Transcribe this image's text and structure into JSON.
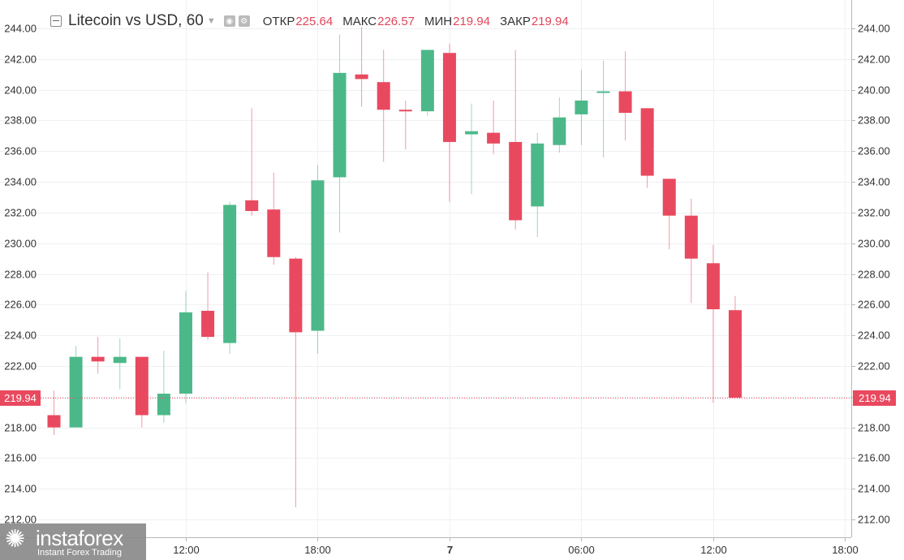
{
  "header": {
    "title": "Litecoin vs USD, 60",
    "open_label": "ОТКР",
    "open_value": "225.64",
    "high_label": "МАКС",
    "high_value": "226.57",
    "low_label": "МИН",
    "low_value": "219.94",
    "close_label": "ЗАКР",
    "close_value": "219.94"
  },
  "logo": {
    "name": "instaforex",
    "tagline": "Instant Forex Trading"
  },
  "colors": {
    "up": "#4cb88a",
    "down": "#e9495f",
    "grid": "#eef0f3",
    "axis": "#b8b8b8",
    "price_line": "#e9495f"
  },
  "chart_data": {
    "type": "candlestick",
    "ylim": [
      211,
      245
    ],
    "y_ticks": [
      244,
      242,
      240,
      238,
      236,
      234,
      232,
      230,
      228,
      226,
      224,
      222,
      220,
      218,
      216,
      214,
      212
    ],
    "x_ticks": [
      {
        "label": "12:00",
        "bar": 6
      },
      {
        "label": "18:00",
        "bar": 12
      },
      {
        "label": "7",
        "bar": 18
      },
      {
        "label": "06:00",
        "bar": 24
      },
      {
        "label": "12:00",
        "bar": 30
      },
      {
        "label": "18:00",
        "bar": 36
      }
    ],
    "last_price": "219.94",
    "candles": [
      {
        "o": 218.8,
        "h": 220.4,
        "l": 217.5,
        "c": 218.0
      },
      {
        "o": 218.0,
        "h": 223.3,
        "l": 218.0,
        "c": 222.6
      },
      {
        "o": 222.6,
        "h": 223.9,
        "l": 221.5,
        "c": 222.3
      },
      {
        "o": 222.2,
        "h": 223.8,
        "l": 220.5,
        "c": 222.6
      },
      {
        "o": 222.6,
        "h": 222.6,
        "l": 218.0,
        "c": 218.8
      },
      {
        "o": 218.8,
        "h": 223.0,
        "l": 218.3,
        "c": 220.2
      },
      {
        "o": 220.2,
        "h": 226.9,
        "l": 219.6,
        "c": 225.5
      },
      {
        "o": 225.6,
        "h": 228.1,
        "l": 223.7,
        "c": 223.9
      },
      {
        "o": 223.5,
        "h": 232.7,
        "l": 222.8,
        "c": 232.5
      },
      {
        "o": 232.8,
        "h": 238.8,
        "l": 231.8,
        "c": 232.1
      },
      {
        "o": 232.2,
        "h": 234.6,
        "l": 228.6,
        "c": 229.1
      },
      {
        "o": 229.0,
        "h": 229.1,
        "l": 212.8,
        "c": 224.2
      },
      {
        "o": 224.3,
        "h": 235.1,
        "l": 222.8,
        "c": 234.1
      },
      {
        "o": 234.3,
        "h": 243.6,
        "l": 230.7,
        "c": 241.1
      },
      {
        "o": 241.0,
        "h": 244.1,
        "l": 238.9,
        "c": 240.7
      },
      {
        "o": 240.5,
        "h": 242.6,
        "l": 235.3,
        "c": 238.7
      },
      {
        "o": 238.7,
        "h": 239.3,
        "l": 236.1,
        "c": 238.6
      },
      {
        "o": 238.6,
        "h": 242.6,
        "l": 238.3,
        "c": 242.6
      },
      {
        "o": 242.4,
        "h": 243.0,
        "l": 232.7,
        "c": 236.6
      },
      {
        "o": 237.1,
        "h": 239.1,
        "l": 233.2,
        "c": 237.3
      },
      {
        "o": 237.2,
        "h": 239.3,
        "l": 235.8,
        "c": 236.5
      },
      {
        "o": 236.6,
        "h": 242.6,
        "l": 230.9,
        "c": 231.5
      },
      {
        "o": 232.4,
        "h": 237.2,
        "l": 230.4,
        "c": 236.5
      },
      {
        "o": 236.4,
        "h": 239.5,
        "l": 235.9,
        "c": 238.2
      },
      {
        "o": 238.4,
        "h": 241.3,
        "l": 236.4,
        "c": 239.3
      },
      {
        "o": 239.8,
        "h": 241.9,
        "l": 235.6,
        "c": 239.9
      },
      {
        "o": 239.9,
        "h": 242.5,
        "l": 236.7,
        "c": 238.5
      },
      {
        "o": 238.8,
        "h": 238.8,
        "l": 233.6,
        "c": 234.4
      },
      {
        "o": 234.2,
        "h": 234.2,
        "l": 229.6,
        "c": 231.8
      },
      {
        "o": 231.8,
        "h": 232.9,
        "l": 226.1,
        "c": 229.0
      },
      {
        "o": 228.7,
        "h": 229.9,
        "l": 219.6,
        "c": 225.7
      },
      {
        "o": 225.64,
        "h": 226.57,
        "l": 219.94,
        "c": 219.94
      }
    ]
  }
}
